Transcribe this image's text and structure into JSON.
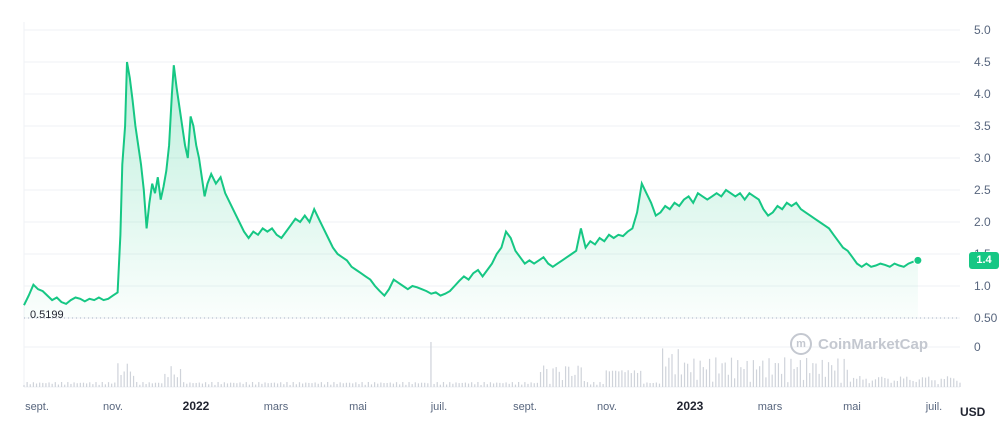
{
  "chart_data": {
    "type": "area",
    "y_unit_label": "USD",
    "y_ticks": [
      "5.0",
      "4.5",
      "4.0",
      "3.5",
      "3.0",
      "2.5",
      "2.0",
      "1.5",
      "1.0",
      "0.50"
    ],
    "ylim": [
      0.5,
      5.0
    ],
    "volume_zero_label": "0",
    "x_ticks": [
      "sept.",
      "nov.",
      "2022",
      "mars",
      "mai",
      "juil.",
      "sept.",
      "nov.",
      "2023",
      "mars",
      "mai",
      "juil."
    ],
    "x_tick_years": [
      "2022",
      "2023"
    ],
    "current_price_label": "1.4",
    "low_label": "0.5199",
    "line_color": "#16c784",
    "volume_color": "#cfd3da",
    "price_series": [
      [
        0.0,
        0.7
      ],
      [
        0.005,
        0.85
      ],
      [
        0.01,
        1.02
      ],
      [
        0.015,
        0.95
      ],
      [
        0.02,
        0.92
      ],
      [
        0.025,
        0.85
      ],
      [
        0.03,
        0.78
      ],
      [
        0.035,
        0.82
      ],
      [
        0.04,
        0.75
      ],
      [
        0.045,
        0.72
      ],
      [
        0.05,
        0.78
      ],
      [
        0.055,
        0.82
      ],
      [
        0.06,
        0.8
      ],
      [
        0.065,
        0.76
      ],
      [
        0.07,
        0.8
      ],
      [
        0.075,
        0.78
      ],
      [
        0.08,
        0.82
      ],
      [
        0.085,
        0.78
      ],
      [
        0.09,
        0.8
      ],
      [
        0.095,
        0.85
      ],
      [
        0.1,
        0.9
      ],
      [
        0.103,
        1.8
      ],
      [
        0.105,
        2.9
      ],
      [
        0.108,
        3.5
      ],
      [
        0.11,
        4.5
      ],
      [
        0.113,
        4.25
      ],
      [
        0.116,
        3.9
      ],
      [
        0.119,
        3.5
      ],
      [
        0.122,
        3.2
      ],
      [
        0.125,
        2.9
      ],
      [
        0.128,
        2.5
      ],
      [
        0.131,
        1.9
      ],
      [
        0.134,
        2.3
      ],
      [
        0.137,
        2.6
      ],
      [
        0.14,
        2.45
      ],
      [
        0.143,
        2.7
      ],
      [
        0.146,
        2.35
      ],
      [
        0.149,
        2.55
      ],
      [
        0.152,
        2.8
      ],
      [
        0.155,
        3.2
      ],
      [
        0.158,
        4.0
      ],
      [
        0.16,
        4.45
      ],
      [
        0.163,
        4.1
      ],
      [
        0.166,
        3.8
      ],
      [
        0.169,
        3.5
      ],
      [
        0.172,
        3.2
      ],
      [
        0.175,
        3.0
      ],
      [
        0.178,
        3.65
      ],
      [
        0.181,
        3.5
      ],
      [
        0.184,
        3.2
      ],
      [
        0.187,
        3.0
      ],
      [
        0.19,
        2.7
      ],
      [
        0.193,
        2.4
      ],
      [
        0.196,
        2.6
      ],
      [
        0.2,
        2.75
      ],
      [
        0.205,
        2.6
      ],
      [
        0.21,
        2.7
      ],
      [
        0.215,
        2.45
      ],
      [
        0.22,
        2.3
      ],
      [
        0.225,
        2.15
      ],
      [
        0.23,
        2.0
      ],
      [
        0.235,
        1.85
      ],
      [
        0.24,
        1.75
      ],
      [
        0.245,
        1.85
      ],
      [
        0.25,
        1.8
      ],
      [
        0.255,
        1.9
      ],
      [
        0.26,
        1.85
      ],
      [
        0.265,
        1.9
      ],
      [
        0.27,
        1.8
      ],
      [
        0.275,
        1.75
      ],
      [
        0.28,
        1.85
      ],
      [
        0.285,
        1.95
      ],
      [
        0.29,
        2.05
      ],
      [
        0.295,
        2.0
      ],
      [
        0.3,
        2.1
      ],
      [
        0.305,
        2.0
      ],
      [
        0.31,
        2.2
      ],
      [
        0.315,
        2.05
      ],
      [
        0.32,
        1.9
      ],
      [
        0.325,
        1.75
      ],
      [
        0.33,
        1.6
      ],
      [
        0.335,
        1.5
      ],
      [
        0.34,
        1.45
      ],
      [
        0.345,
        1.4
      ],
      [
        0.35,
        1.3
      ],
      [
        0.355,
        1.25
      ],
      [
        0.36,
        1.2
      ],
      [
        0.365,
        1.15
      ],
      [
        0.37,
        1.1
      ],
      [
        0.375,
        1.0
      ],
      [
        0.38,
        0.92
      ],
      [
        0.385,
        0.85
      ],
      [
        0.39,
        0.95
      ],
      [
        0.395,
        1.1
      ],
      [
        0.4,
        1.05
      ],
      [
        0.405,
        1.0
      ],
      [
        0.41,
        0.95
      ],
      [
        0.415,
        1.0
      ],
      [
        0.42,
        0.98
      ],
      [
        0.425,
        0.95
      ],
      [
        0.43,
        0.92
      ],
      [
        0.435,
        0.88
      ],
      [
        0.44,
        0.9
      ],
      [
        0.445,
        0.85
      ],
      [
        0.45,
        0.88
      ],
      [
        0.455,
        0.92
      ],
      [
        0.46,
        1.0
      ],
      [
        0.465,
        1.08
      ],
      [
        0.47,
        1.15
      ],
      [
        0.475,
        1.1
      ],
      [
        0.48,
        1.2
      ],
      [
        0.485,
        1.25
      ],
      [
        0.49,
        1.15
      ],
      [
        0.495,
        1.25
      ],
      [
        0.5,
        1.35
      ],
      [
        0.505,
        1.5
      ],
      [
        0.51,
        1.6
      ],
      [
        0.515,
        1.85
      ],
      [
        0.52,
        1.75
      ],
      [
        0.525,
        1.55
      ],
      [
        0.53,
        1.45
      ],
      [
        0.535,
        1.35
      ],
      [
        0.54,
        1.4
      ],
      [
        0.545,
        1.35
      ],
      [
        0.55,
        1.4
      ],
      [
        0.555,
        1.45
      ],
      [
        0.56,
        1.35
      ],
      [
        0.565,
        1.3
      ],
      [
        0.57,
        1.35
      ],
      [
        0.575,
        1.4
      ],
      [
        0.58,
        1.45
      ],
      [
        0.585,
        1.5
      ],
      [
        0.59,
        1.55
      ],
      [
        0.595,
        1.9
      ],
      [
        0.6,
        1.6
      ],
      [
        0.605,
        1.7
      ],
      [
        0.61,
        1.65
      ],
      [
        0.615,
        1.75
      ],
      [
        0.62,
        1.7
      ],
      [
        0.625,
        1.8
      ],
      [
        0.63,
        1.75
      ],
      [
        0.635,
        1.8
      ],
      [
        0.64,
        1.78
      ],
      [
        0.645,
        1.85
      ],
      [
        0.65,
        1.9
      ],
      [
        0.655,
        2.15
      ],
      [
        0.66,
        2.6
      ],
      [
        0.665,
        2.45
      ],
      [
        0.67,
        2.3
      ],
      [
        0.675,
        2.1
      ],
      [
        0.68,
        2.15
      ],
      [
        0.685,
        2.25
      ],
      [
        0.69,
        2.2
      ],
      [
        0.695,
        2.3
      ],
      [
        0.7,
        2.25
      ],
      [
        0.705,
        2.35
      ],
      [
        0.71,
        2.4
      ],
      [
        0.715,
        2.3
      ],
      [
        0.72,
        2.45
      ],
      [
        0.725,
        2.4
      ],
      [
        0.73,
        2.35
      ],
      [
        0.735,
        2.4
      ],
      [
        0.74,
        2.45
      ],
      [
        0.745,
        2.4
      ],
      [
        0.75,
        2.5
      ],
      [
        0.755,
        2.45
      ],
      [
        0.76,
        2.4
      ],
      [
        0.765,
        2.45
      ],
      [
        0.77,
        2.35
      ],
      [
        0.775,
        2.45
      ],
      [
        0.78,
        2.4
      ],
      [
        0.785,
        2.35
      ],
      [
        0.79,
        2.2
      ],
      [
        0.795,
        2.1
      ],
      [
        0.8,
        2.15
      ],
      [
        0.805,
        2.25
      ],
      [
        0.81,
        2.2
      ],
      [
        0.815,
        2.3
      ],
      [
        0.82,
        2.25
      ],
      [
        0.825,
        2.3
      ],
      [
        0.83,
        2.2
      ],
      [
        0.835,
        2.15
      ],
      [
        0.84,
        2.1
      ],
      [
        0.845,
        2.05
      ],
      [
        0.85,
        2.0
      ],
      [
        0.855,
        1.95
      ],
      [
        0.86,
        1.9
      ],
      [
        0.865,
        1.8
      ],
      [
        0.87,
        1.7
      ],
      [
        0.875,
        1.6
      ],
      [
        0.88,
        1.55
      ],
      [
        0.885,
        1.45
      ],
      [
        0.89,
        1.35
      ],
      [
        0.895,
        1.3
      ],
      [
        0.9,
        1.35
      ],
      [
        0.905,
        1.3
      ],
      [
        0.91,
        1.32
      ],
      [
        0.915,
        1.35
      ],
      [
        0.92,
        1.33
      ],
      [
        0.925,
        1.3
      ],
      [
        0.93,
        1.35
      ],
      [
        0.935,
        1.32
      ],
      [
        0.94,
        1.3
      ],
      [
        0.945,
        1.35
      ],
      [
        0.95,
        1.38
      ],
      [
        0.955,
        1.4
      ]
    ]
  },
  "branding": {
    "watermark": "CoinMarketCap"
  }
}
